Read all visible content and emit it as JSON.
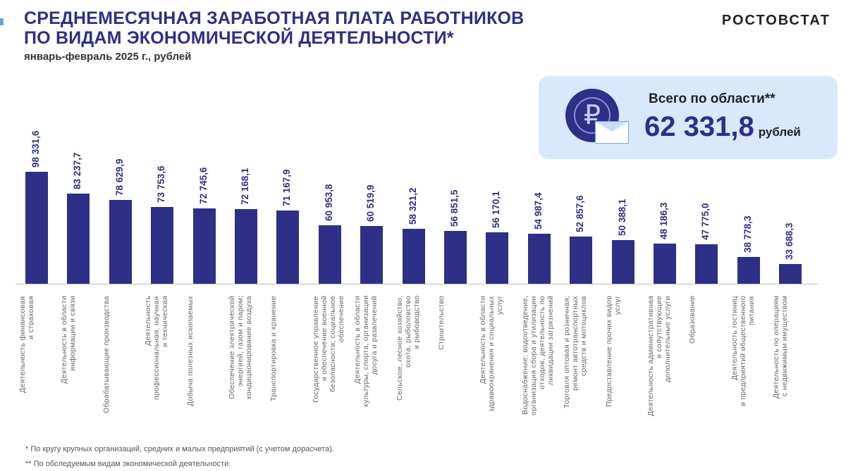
{
  "header": {
    "title_line1": "СРЕДНЕМЕСЯЧНАЯ ЗАРАБОТНАЯ ПЛАТА РАБОТНИКОВ",
    "title_line2": "ПО ВИДАМ ЭКОНОМИЧЕСКОЙ ДЕЯТЕЛЬНОСТИ*",
    "subtitle": "январь-февраль 2025 г., рублей",
    "brand": "РОСТОВСТАТ"
  },
  "total": {
    "label": "Всего по области**",
    "value": "62 331,8",
    "unit": "рублей",
    "icon": "ruble-coin-envelope-icon"
  },
  "colors": {
    "bar": "#2e2f86",
    "accent": "#d9e8fb"
  },
  "chart_data": {
    "type": "bar",
    "ylim": [
      20000,
      100000
    ],
    "categories": [
      "Деятельность финансовая\nи страховая",
      "Деятельность в области\nинформации и связи",
      "Обрабатывающие производства",
      "Деятельность\nпрофессиональная, научная\nи техническая",
      "Добыча полезных ископаемых",
      "Обеспечение электрической\nэнергией, газом и паром;\nкондиционирование воздуха",
      "Транспортировка и хранение",
      "Государственное управление\nи обеспечение военной\nбезопасности; социальное\nобеспечение",
      "Деятельность в области\nкультуры, спорта, организации\nдосуга и развлечений",
      "Сельское, лесное хозяйство,\nохота, рыболовство\nи рыбоводство",
      "Строительство",
      "Деятельность в области\nздравоохранения и социальных\nуслуг",
      "Водоснабжение; водоотведение,\nорганизация сбора и утилизации\nотходов, деятельность по\nликвидации загрязнений",
      "Торговля оптовая и розничная;\nремонт автотранспортных\nсредств и мотоциклов",
      "Предоставление прочих видов\nуслуг",
      "Деятельность административная\nи сопутствующие\nдополнительные услуги",
      "Образование",
      "Деятельность гостиниц\nи предприятий общественного\nпитания",
      "Деятельность по операциям\nс недвижимым имуществом"
    ],
    "values": [
      98331.6,
      83237.7,
      78629.9,
      73753.6,
      72745.6,
      72168.1,
      71167.9,
      60953.8,
      60519.9,
      58321.2,
      56851.5,
      56170.1,
      54987.4,
      52857.6,
      50388.1,
      48186.3,
      47775.0,
      38778.3,
      33688.3
    ],
    "value_labels": [
      "98 331,6",
      "83 237,7",
      "78 629,9",
      "73 753,6",
      "72 745,6",
      "72 168,1",
      "71 167,9",
      "60 953,8",
      "60 519,9",
      "58 321,2",
      "56 851,5",
      "56 170,1",
      "54 987,4",
      "52 857,6",
      "50 388,1",
      "48 186,3",
      "47 775,0",
      "38 778,3",
      "33 688,3"
    ]
  },
  "footnotes": [
    "* По кругу крупных организаций, средних и малых предприятий (с учетом дорасчета).",
    "** По обследуемым видам экономической деятельности."
  ]
}
